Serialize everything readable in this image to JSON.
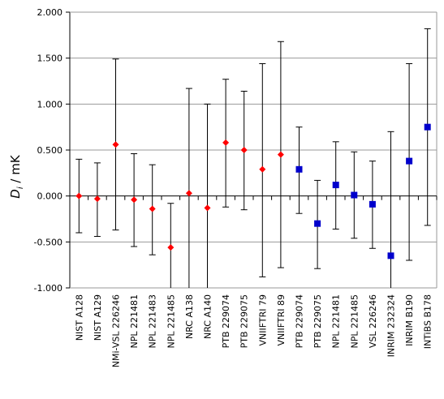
{
  "chart_data": {
    "type": "scatter",
    "ylabel_main": "D",
    "ylabel_sub": "i",
    "ylabel_unit": " / mK",
    "ylim": [
      -1.0,
      2.0
    ],
    "yticks": [
      "2.000",
      "1.500",
      "1.000",
      "0.500",
      "0.000",
      "-0.500",
      "-1.000"
    ],
    "grid": true,
    "categories": [
      "NIST A128",
      "NIST A129",
      "NMi-VSL 226246",
      "NPL 221481",
      "NPL 221483",
      "NPL 221485",
      "NRC A138",
      "NRC A140",
      "PTB 229074",
      "PTB 229075",
      "VNIIFTRI 79",
      "VNIIFTRI 89",
      "PTB 229074",
      "PTB 229075",
      "NPL 221481",
      "NPL 221485",
      "VSL 226246",
      "INRIM 232324",
      "INRIM B190",
      "INTiBS B178"
    ],
    "series": [
      {
        "marker": "diamond",
        "color": "#ff0000",
        "indices": [
          0,
          1,
          2,
          3,
          4,
          5,
          6,
          7,
          8,
          9,
          10,
          11
        ],
        "values": [
          0.0,
          -0.03,
          0.56,
          -0.04,
          -0.14,
          -0.56,
          0.03,
          -0.13,
          0.58,
          0.5,
          0.29,
          0.45
        ],
        "err_low": [
          -0.4,
          -0.44,
          -0.37,
          -0.55,
          -0.64,
          -1.05,
          -1.1,
          -1.2,
          -0.12,
          -0.15,
          -0.88,
          -0.78
        ],
        "err_high": [
          0.4,
          0.36,
          1.49,
          0.46,
          0.34,
          -0.08,
          1.17,
          1.0,
          1.27,
          1.14,
          1.44,
          1.68
        ]
      },
      {
        "marker": "square",
        "color": "#0000cc",
        "indices": [
          12,
          13,
          14,
          15,
          16,
          17,
          18,
          19
        ],
        "values": [
          0.29,
          -0.3,
          0.12,
          0.01,
          -0.09,
          -0.65,
          0.38,
          0.75
        ],
        "err_low": [
          -0.19,
          -0.79,
          -0.36,
          -0.46,
          -0.57,
          -1.05,
          -0.7,
          -0.32
        ],
        "err_high": [
          0.75,
          0.17,
          0.59,
          0.48,
          0.38,
          0.7,
          1.44,
          1.82
        ]
      }
    ]
  }
}
